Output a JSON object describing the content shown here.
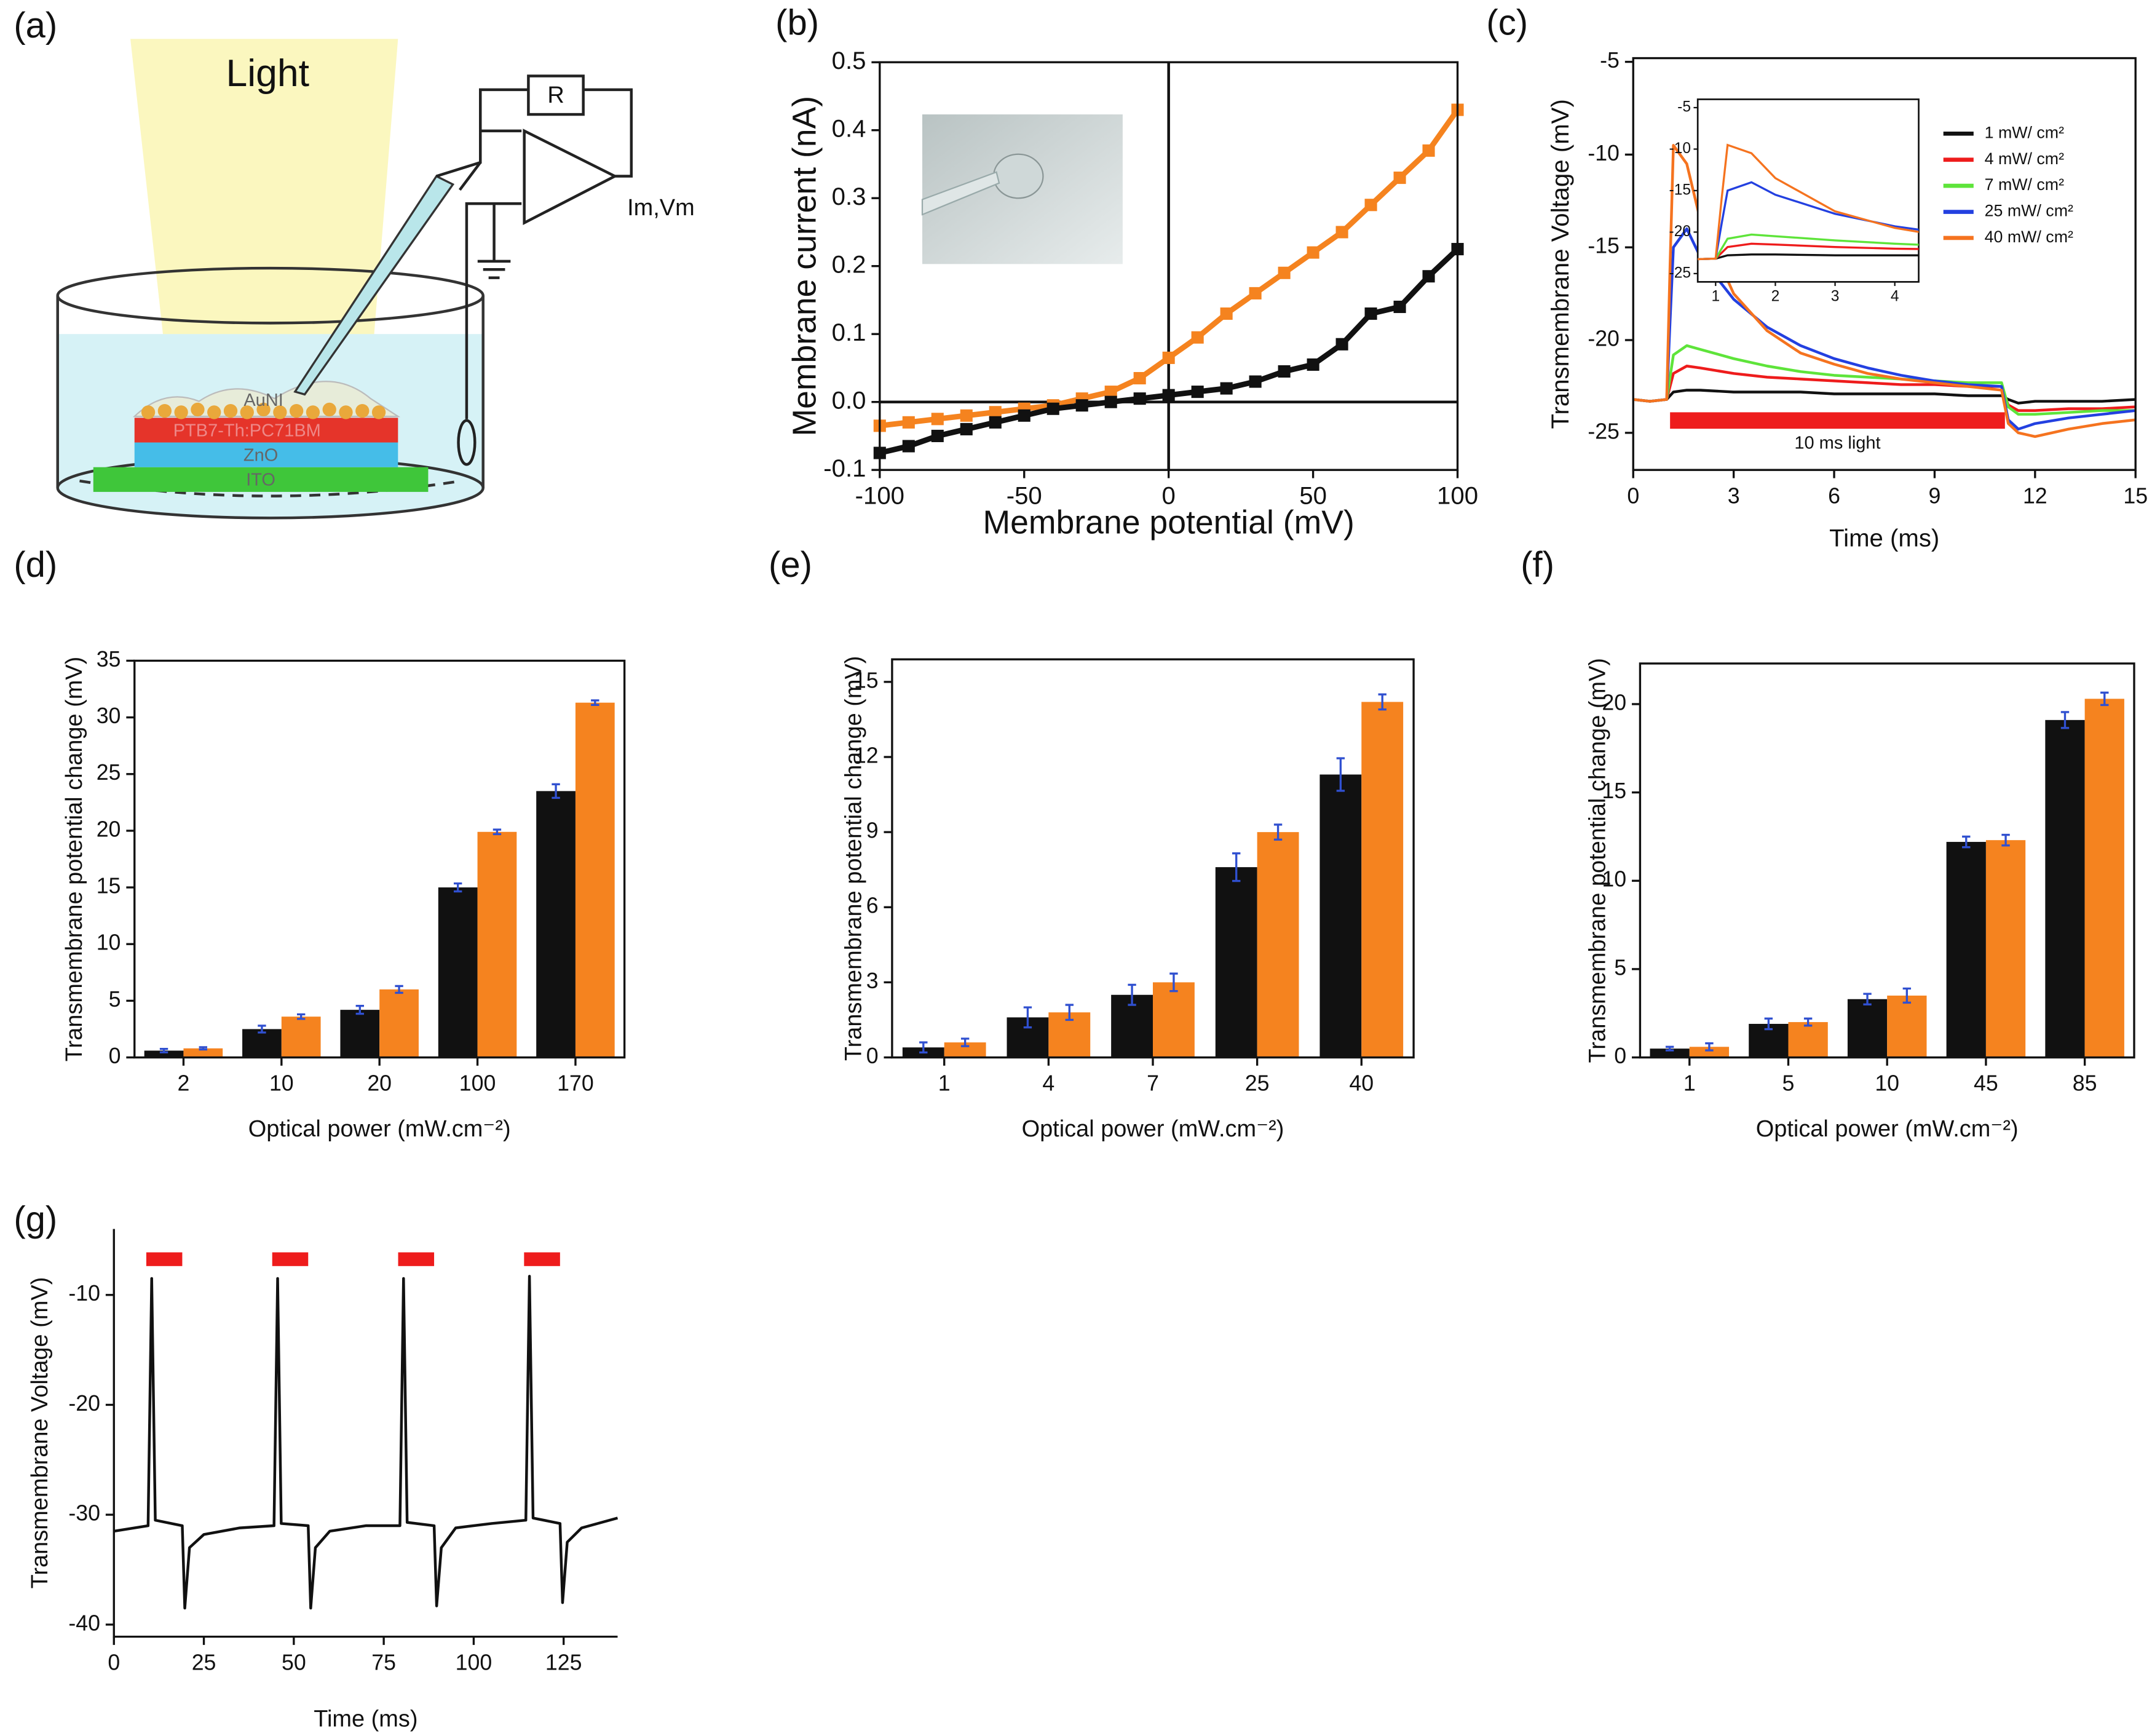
{
  "diagram": {
    "panel_label": "(a)",
    "light": "Light",
    "resistor": "R",
    "output": "Im,Vm",
    "layers": [
      "AuNI",
      "PTB7-Th:PC71BM",
      "ZnO",
      "ITO"
    ]
  },
  "chart_data": [
    {
      "type": "line",
      "panel_label": "(b)",
      "x_label": "Membrane potential (mV)",
      "y_label": "Membrane current (nA)",
      "x": [
        -100,
        -90,
        -80,
        -70,
        -60,
        -50,
        -40,
        -30,
        -20,
        -10,
        0,
        10,
        20,
        30,
        40,
        50,
        60,
        70,
        80,
        90,
        100
      ],
      "series": [
        {
          "color": "#f5831f",
          "values": [
            -0.035,
            -0.03,
            -0.025,
            -0.02,
            -0.015,
            -0.01,
            -0.005,
            0.005,
            0.015,
            0.035,
            0.065,
            0.095,
            0.13,
            0.16,
            0.19,
            0.22,
            0.25,
            0.29,
            0.33,
            0.37,
            0.43
          ]
        },
        {
          "color": "#111111",
          "values": [
            -0.075,
            -0.065,
            -0.05,
            -0.04,
            -0.03,
            -0.02,
            -0.01,
            -0.005,
            0,
            0.005,
            0.01,
            0.015,
            0.02,
            0.03,
            0.045,
            0.055,
            0.085,
            0.13,
            0.14,
            0.185,
            0.225
          ]
        }
      ],
      "markers": true,
      "zero_lines": true,
      "xlim": [
        -100,
        100
      ],
      "xticks": [
        -100,
        -50,
        0,
        50,
        100
      ],
      "ylim": [
        -0.1,
        0.5
      ],
      "yticks": [
        -0.1,
        {
          "value": 0,
          "label": "0.0"
        },
        0.1,
        0.2,
        0.3,
        0.4,
        0.5
      ]
    },
    {
      "type": "line",
      "panel_label": "(c)",
      "x_label": "Time (ms)",
      "y_label": "Transmembrane Voltage (mV)",
      "x": [
        0,
        0.5,
        1,
        1.1,
        1.2,
        1.6,
        2,
        3,
        4,
        5,
        6,
        7,
        8,
        9,
        10,
        11,
        11.2,
        11.5,
        12,
        13,
        14,
        15
      ],
      "series": [
        {
          "name": "1 mW/ cm²",
          "color": "#111111",
          "values": [
            -23.2,
            -23.3,
            -23.2,
            -23,
            -22.8,
            -22.7,
            -22.7,
            -22.8,
            -22.8,
            -22.8,
            -22.9,
            -22.9,
            -22.9,
            -22.9,
            -23,
            -23,
            -23.2,
            -23.4,
            -23.3,
            -23.3,
            -23.3,
            -23.2
          ]
        },
        {
          "name": "4 mW/ cm²",
          "color": "#ee1c1c",
          "values": [
            -23.2,
            -23.3,
            -23.2,
            -22.5,
            -21.8,
            -21.4,
            -21.5,
            -21.8,
            -22,
            -22.1,
            -22.2,
            -22.3,
            -22.4,
            -22.4,
            -22.5,
            -22.5,
            -23.5,
            -23.8,
            -23.8,
            -23.7,
            -23.7,
            -23.6
          ]
        },
        {
          "name": "7 mW/ cm²",
          "color": "#5ee43a",
          "values": [
            -23.2,
            -23.3,
            -23.2,
            -22,
            -20.8,
            -20.3,
            -20.5,
            -21,
            -21.4,
            -21.7,
            -21.9,
            -22,
            -22.1,
            -22.2,
            -22.3,
            -22.3,
            -23.6,
            -24,
            -24,
            -23.9,
            -23.8,
            -23.8
          ]
        },
        {
          "name": "25 mW/ cm²",
          "color": "#2340e0",
          "values": [
            -23.2,
            -23.3,
            -23.2,
            -19,
            -15,
            -14,
            -15.5,
            -17.8,
            -19.3,
            -20.3,
            -21,
            -21.5,
            -21.9,
            -22.2,
            -22.4,
            -22.5,
            -24.3,
            -24.8,
            -24.5,
            -24.2,
            -24,
            -23.8
          ]
        },
        {
          "name": "40 mW/ cm²",
          "color": "#f5731f",
          "values": [
            -23.2,
            -23.3,
            -23.2,
            -16,
            -9.5,
            -10.5,
            -13.5,
            -17.5,
            -19.5,
            -20.7,
            -21.3,
            -21.8,
            -22.1,
            -22.3,
            -22.5,
            -22.7,
            -24.5,
            -25,
            -25.2,
            -24.8,
            -24.5,
            -24.3
          ]
        }
      ],
      "legend": "upper right",
      "light_pulse": {
        "start": 1.1,
        "end": 11.1,
        "label": "10 ms light",
        "color": "#ee1c1c"
      },
      "xlim": [
        0,
        15
      ],
      "xticks": [
        0,
        3,
        6,
        9,
        12,
        15
      ],
      "ylim": [
        -27,
        -4.8
      ],
      "yticks": [
        -25,
        -20,
        -15,
        -10,
        -5
      ],
      "inset": {
        "xlim": [
          0.7,
          4.4
        ],
        "xticks": [
          1,
          2,
          3,
          4
        ],
        "ylim": [
          -26,
          -4
        ],
        "yticks": [
          -25,
          -20,
          -15,
          -10,
          -5
        ]
      }
    },
    {
      "type": "bar",
      "panel_label": "(d)",
      "x_label": "Optical power (mW.cm⁻²)",
      "y_label": "Transmembrane potential change (mV)",
      "categories": [
        "2",
        "10",
        "20",
        "100",
        "170"
      ],
      "series": [
        {
          "color": "#111111",
          "values": [
            0.6,
            2.5,
            4.2,
            15,
            23.5
          ],
          "errors": [
            0.15,
            0.3,
            0.35,
            0.35,
            0.6
          ]
        },
        {
          "color": "#f5831f",
          "values": [
            0.8,
            3.6,
            6,
            19.9,
            31.3
          ],
          "errors": [
            0.1,
            0.2,
            0.3,
            0.2,
            0.2
          ]
        }
      ],
      "error_color": "#3050d0",
      "ylim": [
        0,
        35
      ],
      "yticks": [
        0,
        5,
        10,
        15,
        20,
        25,
        30,
        35
      ]
    },
    {
      "type": "bar",
      "panel_label": "(e)",
      "x_label": "Optical power (mW.cm⁻²)",
      "y_label": "Transmembrane potential change (mV)",
      "categories": [
        "1",
        "4",
        "7",
        "25",
        "40"
      ],
      "series": [
        {
          "color": "#111111",
          "values": [
            0.4,
            1.6,
            2.5,
            7.6,
            11.3
          ],
          "errors": [
            0.2,
            0.4,
            0.4,
            0.55,
            0.65
          ]
        },
        {
          "color": "#f5831f",
          "values": [
            0.6,
            1.8,
            3,
            9,
            14.2
          ],
          "errors": [
            0.15,
            0.3,
            0.35,
            0.3,
            0.3
          ]
        }
      ],
      "error_color": "#3050d0",
      "ylim": [
        0,
        15.9
      ],
      "yticks": [
        0,
        3,
        6,
        9,
        12,
        15
      ]
    },
    {
      "type": "bar",
      "panel_label": "(f)",
      "x_label": "Optical power (mW.cm⁻²)",
      "y_label": "Transmembrane potential change (mV)",
      "categories": [
        "1",
        "5",
        "10",
        "45",
        "85"
      ],
      "series": [
        {
          "color": "#111111",
          "values": [
            0.5,
            1.9,
            3.3,
            12.2,
            19.1
          ],
          "errors": [
            0.1,
            0.3,
            0.3,
            0.3,
            0.45
          ]
        },
        {
          "color": "#f5831f",
          "values": [
            0.6,
            2,
            3.5,
            12.3,
            20.3
          ],
          "errors": [
            0.2,
            0.2,
            0.4,
            0.3,
            0.35
          ]
        }
      ],
      "error_color": "#3050d0",
      "ylim": [
        0,
        22.3
      ],
      "yticks": [
        0,
        5,
        10,
        15,
        20
      ]
    },
    {
      "type": "line",
      "panel_label": "(g)",
      "x_label": "Time (ms)",
      "y_label": "Transmembrane Voltage (mV)",
      "x": [
        0,
        9.5,
        10.5,
        11.5,
        19,
        19.7,
        21,
        25,
        35,
        44.5,
        45.5,
        46.5,
        54,
        54.7,
        56,
        60,
        70,
        79.5,
        80.5,
        81.5,
        89,
        89.7,
        91,
        95,
        105,
        114.5,
        115.5,
        116.5,
        124,
        124.7,
        126,
        130,
        140
      ],
      "series": [
        {
          "color": "#111111",
          "values": [
            -31.5,
            -31,
            -8.5,
            -30.5,
            -31,
            -38.5,
            -33,
            -31.8,
            -31.2,
            -31,
            -8.5,
            -30.8,
            -31,
            -38.5,
            -33,
            -31.5,
            -31,
            -31,
            -8.5,
            -30.7,
            -31,
            -38.3,
            -33,
            -31.2,
            -30.8,
            -30.5,
            -8.3,
            -30.3,
            -30.8,
            -38,
            -32.5,
            -31.2,
            -30.3
          ]
        }
      ],
      "light_pulses": [
        [
          9,
          19
        ],
        [
          44,
          54
        ],
        [
          79,
          89
        ],
        [
          114,
          124
        ]
      ],
      "pulse_color": "#ee1c1c",
      "xlim": [
        0,
        140
      ],
      "xticks": [
        0,
        25,
        50,
        75,
        100,
        125
      ],
      "ylim": [
        -41.1,
        -4
      ],
      "yticks": [
        -40,
        -30,
        -20,
        -10
      ]
    }
  ]
}
